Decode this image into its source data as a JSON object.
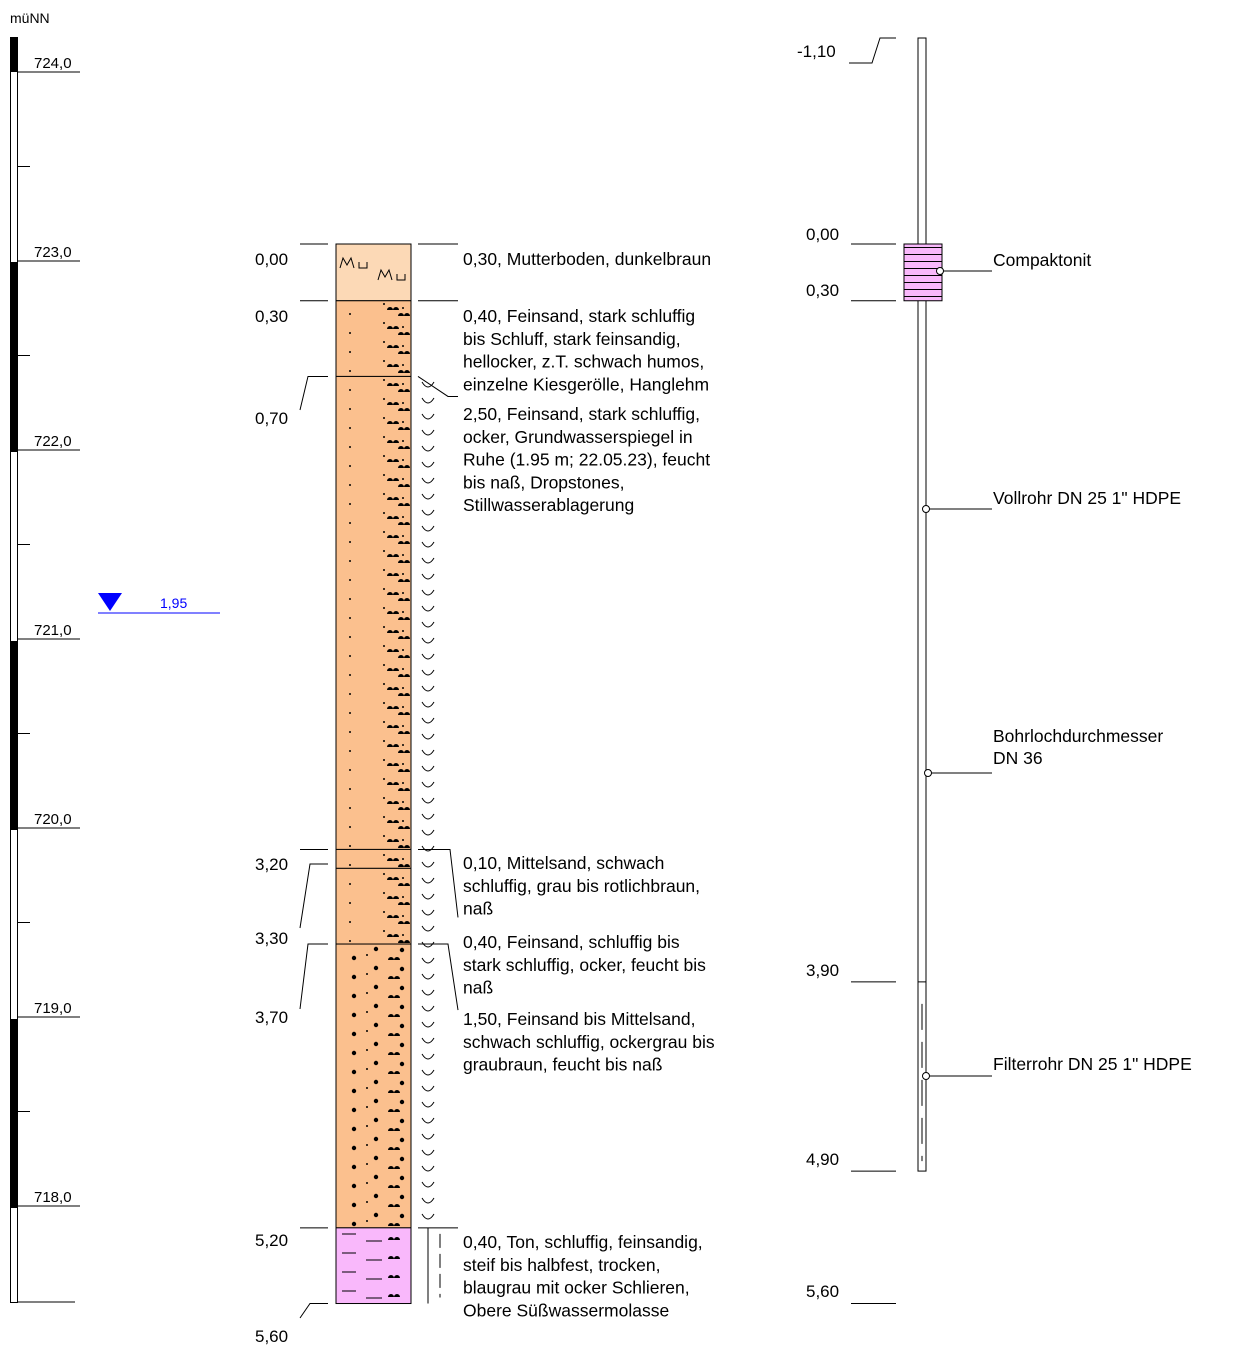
{
  "header": {
    "unit": "müNN"
  },
  "elevation_ticks": [
    {
      "label": "724,0",
      "y": 724.0
    },
    {
      "label": "723,0",
      "y": 723.0
    },
    {
      "label": "722,0",
      "y": 722.0
    },
    {
      "label": "721,0",
      "y": 721.0
    },
    {
      "label": "720,0",
      "y": 720.0
    },
    {
      "label": "719,0",
      "y": 719.0
    },
    {
      "label": "718,0",
      "y": 718.0
    }
  ],
  "groundwater": {
    "label": "1,95",
    "depth": 1.95,
    "color": "#0000ff"
  },
  "colors": {
    "mutterboden": "#fcd9b6",
    "sand": "#fbc08e",
    "ton": "#f9b8fb",
    "compaktonit": "#f9b8fb"
  },
  "profile": {
    "layers": [
      {
        "top": 0.0,
        "bottom": 0.3,
        "material": "mutterboden"
      },
      {
        "top": 0.3,
        "bottom": 0.7,
        "material": "sand"
      },
      {
        "top": 0.7,
        "bottom": 3.2,
        "material": "sand"
      },
      {
        "top": 3.2,
        "bottom": 3.3,
        "material": "sand"
      },
      {
        "top": 3.3,
        "bottom": 3.7,
        "material": "sand"
      },
      {
        "top": 3.7,
        "bottom": 5.2,
        "material": "sand"
      },
      {
        "top": 5.2,
        "bottom": 5.6,
        "material": "ton"
      }
    ],
    "depth_labels": [
      "0,00",
      "0,30",
      "0,70",
      "3,20",
      "3,30",
      "3,70",
      "5,20",
      "5,60"
    ],
    "descriptions": [
      [
        "0,30, Mutterboden, dunkelbraun"
      ],
      [
        "0,40, Feinsand, stark schluffig",
        "bis Schluff, stark feinsandig,",
        "hellocker, z.T. schwach humos,",
        "einzelne Kiesgerölle, Hanglehm"
      ],
      [
        "2,50, Feinsand, stark schluffig,",
        "ocker, Grundwasserspiegel in",
        "Ruhe (1.95 m; 22.05.23), feucht",
        "bis naß, Dropstones,",
        "Stillwasserablagerung"
      ],
      [
        "0,10, Mittelsand, schwach",
        "schluffig, grau bis rotlichbraun,",
        "naß"
      ],
      [
        "0,40, Feinsand, schluffig bis",
        "stark schluffig, ocker, feucht bis",
        "naß"
      ],
      [
        "1,50, Feinsand bis Mittelsand,",
        "schwach schluffig, ockergrau bis",
        "graubraun, feucht bis naß"
      ],
      [
        "0,40, Ton, schluffig, feinsandig,",
        "steif bis halbfest, trocken,",
        "blaugrau mit ocker Schlieren,",
        "Obere Süßwassermolasse"
      ]
    ]
  },
  "well": {
    "depth_labels": [
      "-1,10",
      "0,00",
      "0,30",
      "3,90",
      "4,90",
      "5,60"
    ],
    "labels": {
      "compaktonit": "Compaktonit",
      "vollrohr": "Vollrohr DN 25 1\" HDPE",
      "bohrloch_1": "Bohrlochdurchmesser",
      "bohrloch_2": "DN 36",
      "filterrohr": "Filterrohr DN 25 1\" HDPE"
    }
  }
}
